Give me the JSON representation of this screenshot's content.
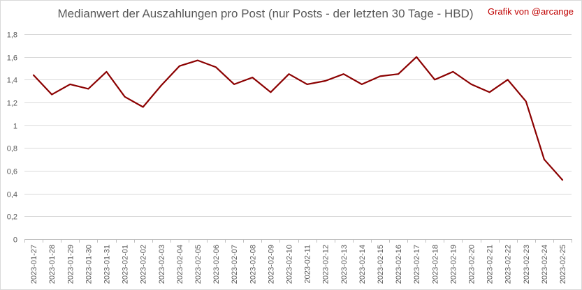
{
  "chart_data": {
    "type": "line",
    "title": "Medianwert der Auszahlungen pro Post (nur Posts - der letzten 30 Tage - HBD)",
    "credit": "Grafik von @arcange",
    "xlabel": "",
    "ylabel": "",
    "ylim": [
      0,
      1.8
    ],
    "yticks": [
      "0",
      "0,2",
      "0,4",
      "0,6",
      "0,8",
      "1",
      "1,2",
      "1,4",
      "1,6",
      "1,8"
    ],
    "grid": true,
    "legend": "none",
    "categories": [
      "2023-01-27",
      "2023-01-28",
      "2023-01-29",
      "2023-01-30",
      "2023-01-31",
      "2023-02-01",
      "2023-02-02",
      "2023-02-03",
      "2023-02-04",
      "2023-02-05",
      "2023-02-06",
      "2023-02-07",
      "2023-02-08",
      "2023-02-09",
      "2023-02-10",
      "2023-02-11",
      "2023-02-12",
      "2023-02-13",
      "2023-02-14",
      "2023-02-15",
      "2023-02-16",
      "2023-02-17",
      "2023-02-18",
      "2023-02-19",
      "2023-02-20",
      "2023-02-21",
      "2023-02-22",
      "2023-02-23",
      "2023-02-24",
      "2023-02-25"
    ],
    "series": [
      {
        "values": [
          1.44,
          1.27,
          1.36,
          1.32,
          1.47,
          1.25,
          1.16,
          1.35,
          1.52,
          1.57,
          1.51,
          1.36,
          1.42,
          1.29,
          1.45,
          1.36,
          1.39,
          1.45,
          1.36,
          1.43,
          1.45,
          1.6,
          1.4,
          1.47,
          1.36,
          1.29,
          1.4,
          1.21,
          0.7,
          0.52
        ],
        "color": "#8b0000"
      }
    ]
  }
}
